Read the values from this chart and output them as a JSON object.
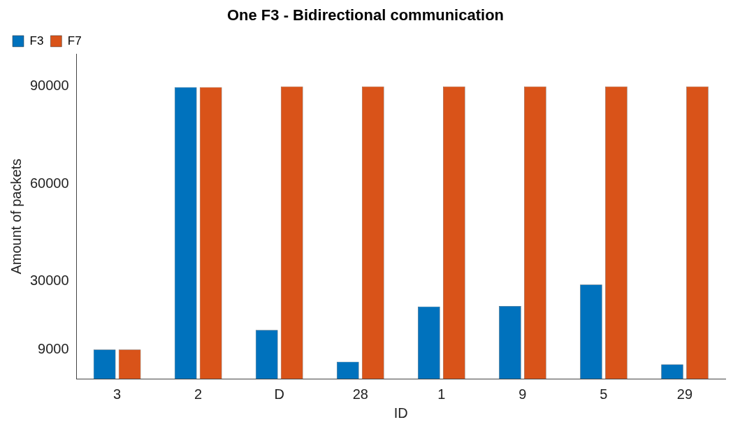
{
  "chart_data": {
    "type": "bar",
    "title": "One F3 - Bidirectional communication",
    "xlabel": "ID",
    "ylabel": "Amount of packets",
    "categories": [
      "3",
      "2",
      "D",
      "28",
      "1",
      "9",
      "5",
      "29"
    ],
    "series": [
      {
        "name": "F3",
        "color": "#0072bd",
        "values": [
          9000,
          89800,
          15000,
          5200,
          22200,
          22400,
          29000,
          4400
        ]
      },
      {
        "name": "F7",
        "color": "#d95319",
        "values": [
          9000,
          89800,
          90000,
          90000,
          90000,
          90000,
          90000,
          90000
        ]
      }
    ],
    "ylim": [
      0,
      100000
    ],
    "yticks": [
      9000,
      30000,
      60000,
      90000
    ],
    "grid": false,
    "legend": "top left"
  }
}
